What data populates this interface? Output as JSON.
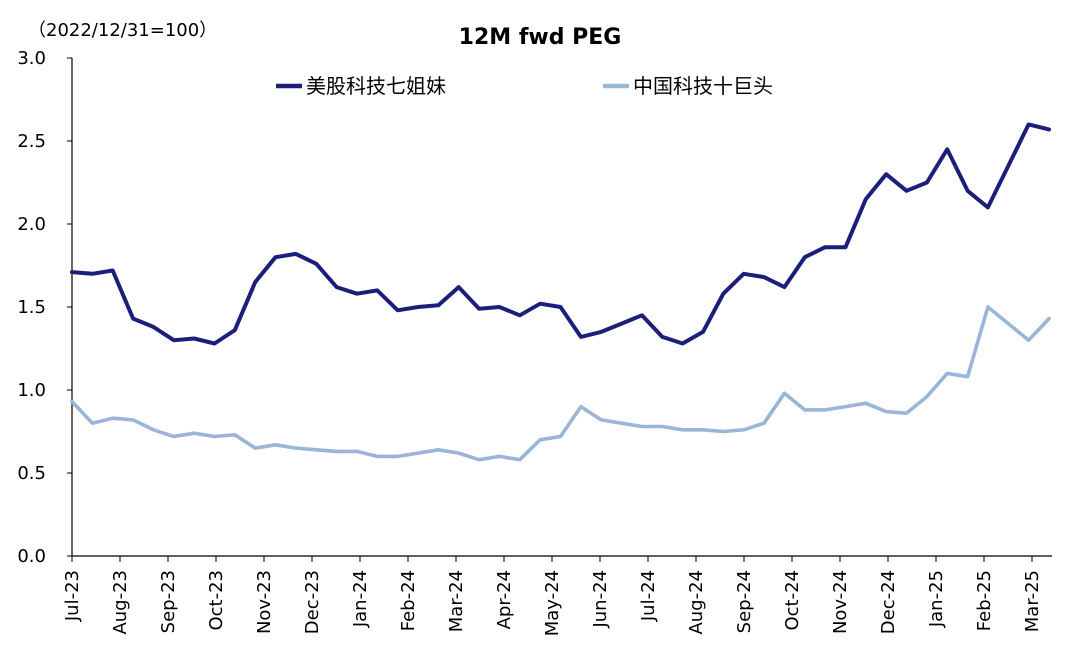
{
  "chart_data": {
    "type": "line",
    "title": "12M fwd PEG",
    "note": "（2022/12/31=100）",
    "xlabel": "",
    "ylabel": "",
    "ylim": [
      0,
      3.0
    ],
    "yticks": [
      "0.0",
      "0.5",
      "1.0",
      "1.5",
      "2.0",
      "2.5",
      "3.0"
    ],
    "x_ticks": [
      "Jul-23",
      "Aug-23",
      "Sep-23",
      "Oct-23",
      "Nov-23",
      "Dec-23",
      "Jan-24",
      "Feb-24",
      "Mar-24",
      "Apr-24",
      "May-24",
      "Jun-24",
      "Jul-24",
      "Aug-24",
      "Sep-24",
      "Oct-24",
      "Nov-24",
      "Dec-24",
      "Jan-25",
      "Feb-25",
      "Mar-25"
    ],
    "grid": false,
    "legend_position": "top",
    "series": [
      {
        "name": "美股科技七姐妹",
        "color": "#1b1f7a",
        "values": [
          1.71,
          1.7,
          1.72,
          1.43,
          1.38,
          1.3,
          1.31,
          1.28,
          1.36,
          1.65,
          1.8,
          1.82,
          1.76,
          1.62,
          1.58,
          1.6,
          1.48,
          1.5,
          1.51,
          1.62,
          1.49,
          1.5,
          1.45,
          1.52,
          1.5,
          1.32,
          1.35,
          1.4,
          1.45,
          1.32,
          1.28,
          1.35,
          1.58,
          1.7,
          1.68,
          1.62,
          1.8,
          1.86,
          1.86,
          2.15,
          2.3,
          2.2,
          2.25,
          2.45,
          2.2,
          2.1,
          2.35,
          2.6,
          2.57
        ]
      },
      {
        "name": "中国科技十巨头",
        "color": "#9ab5d8",
        "values": [
          0.93,
          0.8,
          0.83,
          0.82,
          0.76,
          0.72,
          0.74,
          0.72,
          0.73,
          0.65,
          0.67,
          0.65,
          0.64,
          0.63,
          0.63,
          0.6,
          0.6,
          0.62,
          0.64,
          0.62,
          0.58,
          0.6,
          0.58,
          0.7,
          0.72,
          0.9,
          0.82,
          0.8,
          0.78,
          0.78,
          0.76,
          0.76,
          0.75,
          0.76,
          0.8,
          0.98,
          0.88,
          0.88,
          0.9,
          0.92,
          0.87,
          0.86,
          0.96,
          1.1,
          1.08,
          1.5,
          1.4,
          1.3,
          1.43
        ]
      }
    ]
  }
}
